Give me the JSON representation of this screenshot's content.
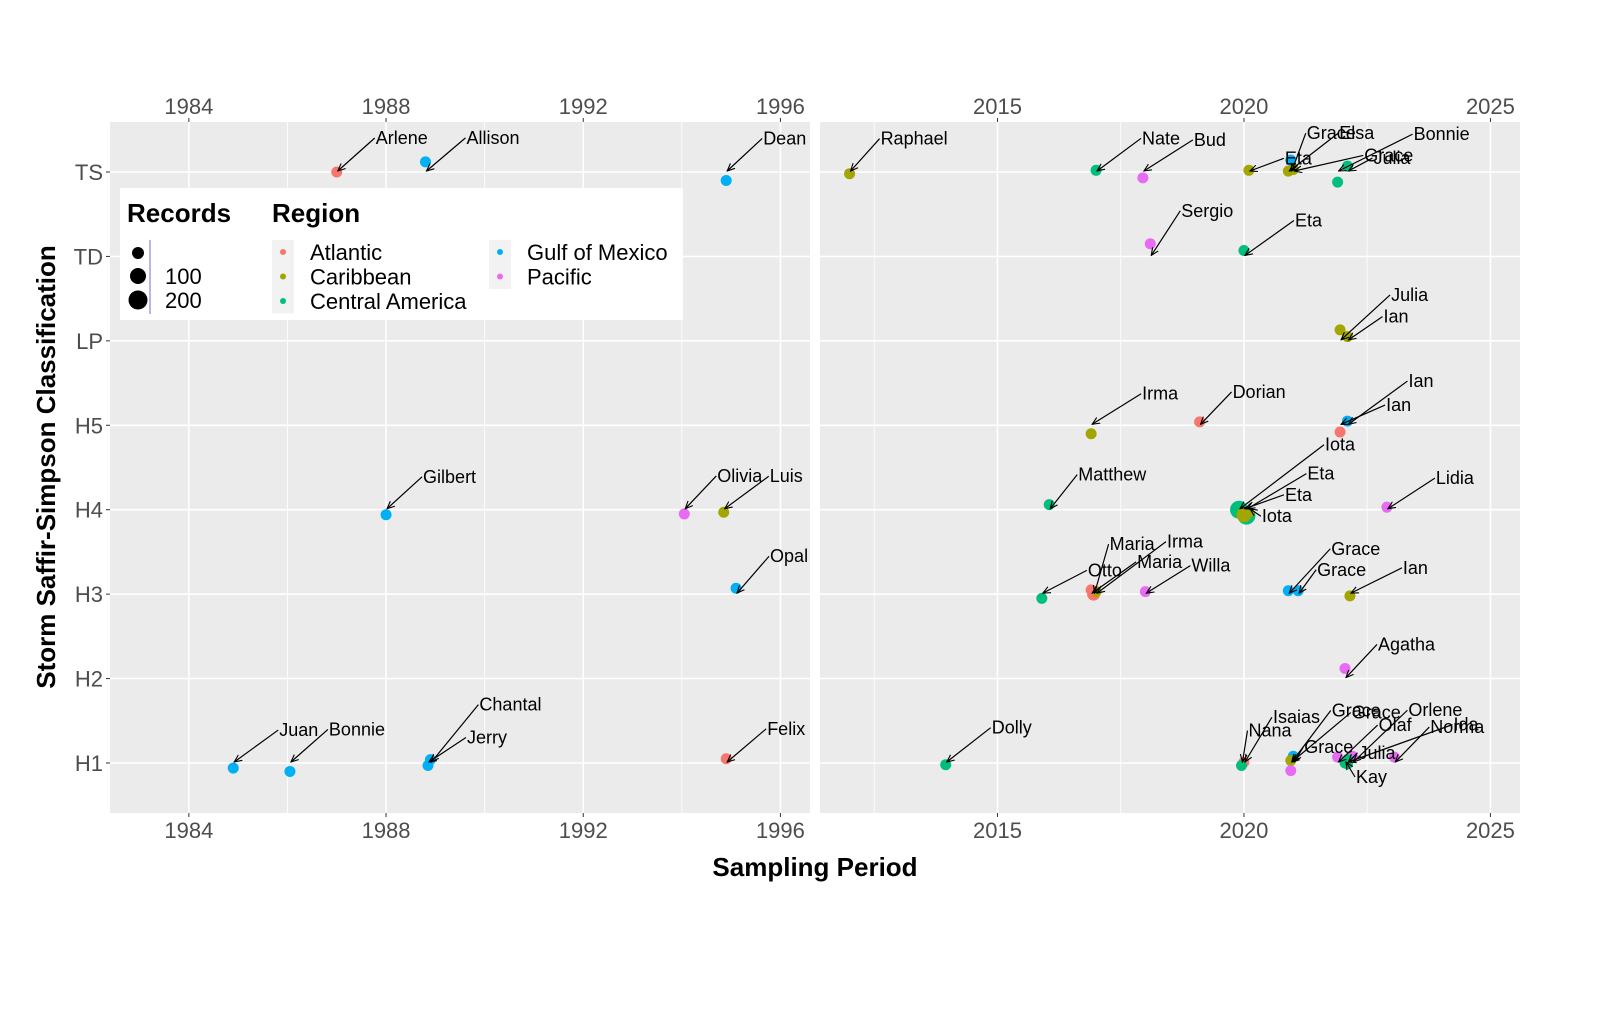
{
  "chart_data": {
    "type": "scatter",
    "title": "",
    "xlabel": "Sampling Period",
    "ylabel": "Storm Saffir-Simpson Classification",
    "y_categories": [
      "H1",
      "H2",
      "H3",
      "H4",
      "H5",
      "LP",
      "TD",
      "TS"
    ],
    "grid": true,
    "legend_placement": "top-left inside",
    "legend": {
      "size_title": "Records",
      "size_entries": [
        {
          "label": "",
          "value": 50
        },
        {
          "label": "100",
          "value": 100
        },
        {
          "label": "200",
          "value": 200
        }
      ],
      "color_title": "Region",
      "color_entries": [
        {
          "label": "Atlantic",
          "color": "#F8766D"
        },
        {
          "label": "Caribbean",
          "color": "#A3A500"
        },
        {
          "label": "Central America",
          "color": "#00BF7D"
        },
        {
          "label": "Gulf of Mexico",
          "color": "#00B0F6"
        },
        {
          "label": "Pacific",
          "color": "#E76BF3"
        }
      ]
    },
    "panels": [
      {
        "name": "1984-1996",
        "xlim": [
          1982.4,
          1996.6
        ],
        "x_ticks": [
          "1984",
          "1988",
          "1992",
          "1996"
        ],
        "points": [
          {
            "name": "Arlene",
            "x": 1987.0,
            "y": "TS",
            "jitter": 0.0,
            "region": "Atlantic",
            "records": 60
          },
          {
            "name": "Allison",
            "x": 1988.8,
            "y": "TS",
            "jitter": 0.12,
            "region": "Gulf of Mexico",
            "records": 60
          },
          {
            "name": "Dean",
            "x": 1994.9,
            "y": "TS",
            "jitter": -0.1,
            "region": "Gulf of Mexico",
            "records": 60
          },
          {
            "name": "Gilbert",
            "x": 1988.0,
            "y": "H4",
            "jitter": -0.06,
            "region": "Gulf of Mexico",
            "records": 60
          },
          {
            "name": "Olivia",
            "x": 1994.05,
            "y": "H4",
            "jitter": -0.05,
            "region": "Pacific",
            "records": 60
          },
          {
            "name": "Luis",
            "x": 1994.85,
            "y": "H4",
            "jitter": -0.03,
            "region": "Caribbean",
            "records": 60
          },
          {
            "name": "Opal",
            "x": 1995.1,
            "y": "H3",
            "jitter": 0.07,
            "region": "Gulf of Mexico",
            "records": 60
          },
          {
            "name": "Juan",
            "x": 1984.9,
            "y": "H1",
            "jitter": -0.06,
            "region": "Gulf of Mexico",
            "records": 60
          },
          {
            "name": "Bonnie",
            "x": 1986.05,
            "y": "H1",
            "jitter": -0.1,
            "region": "Gulf of Mexico",
            "records": 60
          },
          {
            "name": "Chantal",
            "x": 1988.9,
            "y": "H1",
            "jitter": 0.04,
            "region": "Gulf of Mexico",
            "records": 60
          },
          {
            "name": "Jerry",
            "x": 1988.85,
            "y": "H1",
            "jitter": -0.03,
            "region": "Gulf of Mexico",
            "records": 60
          },
          {
            "name": "Felix",
            "x": 1994.9,
            "y": "H1",
            "jitter": 0.05,
            "region": "Atlantic",
            "records": 60
          }
        ]
      },
      {
        "name": "2011-2025",
        "xlim": [
          2011.4,
          2025.6
        ],
        "x_ticks": [
          "2015",
          "2020",
          "2025"
        ],
        "points": [
          {
            "name": "Raphael",
            "x": 2012.0,
            "y": "TS",
            "jitter": -0.02,
            "region": "Caribbean",
            "records": 60
          },
          {
            "name": "Nate",
            "x": 2017.0,
            "y": "TS",
            "jitter": 0.02,
            "region": "Central America",
            "records": 60
          },
          {
            "name": "Bud",
            "x": 2017.95,
            "y": "TS",
            "jitter": -0.07,
            "region": "Pacific",
            "records": 60
          },
          {
            "name": "Eta",
            "x": 2020.1,
            "y": "TS",
            "jitter": 0.02,
            "region": "Caribbean",
            "records": 60
          },
          {
            "name": "Grace",
            "x": 2020.95,
            "y": "TS",
            "jitter": 0.14,
            "region": "Gulf of Mexico",
            "records": 60
          },
          {
            "name": "Elsa",
            "x": 2020.9,
            "y": "TS",
            "jitter": 0.01,
            "region": "Caribbean",
            "records": 60
          },
          {
            "name": "Grace",
            "x": 2021.0,
            "y": "TS",
            "jitter": 0.03,
            "region": "Caribbean",
            "records": 60
          },
          {
            "name": "Bonnie",
            "x": 2021.9,
            "y": "TS",
            "jitter": -0.12,
            "region": "Central America",
            "records": 60
          },
          {
            "name": "Julia",
            "x": 2022.1,
            "y": "TS",
            "jitter": 0.07,
            "region": "Central America",
            "records": 60
          },
          {
            "name": "Sergio",
            "x": 2018.1,
            "y": "TD",
            "jitter": 0.15,
            "region": "Pacific",
            "records": 60
          },
          {
            "name": "Eta",
            "x": 2020.0,
            "y": "TD",
            "jitter": 0.07,
            "region": "Central America",
            "records": 60
          },
          {
            "name": "Julia",
            "x": 2021.95,
            "y": "LP",
            "jitter": 0.13,
            "region": "Caribbean",
            "records": 60
          },
          {
            "name": "Ian",
            "x": 2022.1,
            "y": "LP",
            "jitter": 0.05,
            "region": "Caribbean",
            "records": 60
          },
          {
            "name": "Irma",
            "x": 2016.9,
            "y": "H5",
            "jitter": -0.1,
            "region": "Caribbean",
            "records": 60
          },
          {
            "name": "Dorian",
            "x": 2019.1,
            "y": "H5",
            "jitter": 0.04,
            "region": "Atlantic",
            "records": 60
          },
          {
            "name": "Ian",
            "x": 2022.1,
            "y": "H5",
            "jitter": 0.05,
            "region": "Gulf of Mexico",
            "records": 60
          },
          {
            "name": "Ian",
            "x": 2021.95,
            "y": "H5",
            "jitter": -0.08,
            "region": "Atlantic",
            "records": 60
          },
          {
            "name": "Matthew",
            "x": 2016.05,
            "y": "H4",
            "jitter": 0.06,
            "region": "Central America",
            "records": 60
          },
          {
            "name": "Iota",
            "x": 2019.9,
            "y": "H4",
            "jitter": 0.0,
            "region": "Central America",
            "records": 200
          },
          {
            "name": "Eta",
            "x": 2020.05,
            "y": "H4",
            "jitter": -0.07,
            "region": "Central America",
            "records": 200
          },
          {
            "name": "Eta",
            "x": 2020.0,
            "y": "H4",
            "jitter": -0.06,
            "region": "Caribbean",
            "records": 100
          },
          {
            "name": "Iota",
            "x": 2020.1,
            "y": "H4",
            "jitter": -0.03,
            "region": "Caribbean",
            "records": 60
          },
          {
            "name": "Lidia",
            "x": 2022.9,
            "y": "H4",
            "jitter": 0.03,
            "region": "Pacific",
            "records": 60
          },
          {
            "name": "Otto",
            "x": 2015.9,
            "y": "H3",
            "jitter": -0.05,
            "region": "Central America",
            "records": 60
          },
          {
            "name": "Maria",
            "x": 2016.95,
            "y": "H3",
            "jitter": 0.0,
            "region": "Atlantic",
            "records": 80
          },
          {
            "name": "Irma",
            "x": 2017.0,
            "y": "H3",
            "jitter": 0.03,
            "region": "Caribbean",
            "records": 60
          },
          {
            "name": "Maria",
            "x": 2016.9,
            "y": "H3",
            "jitter": 0.05,
            "region": "Atlantic",
            "records": 60
          },
          {
            "name": "Willa",
            "x": 2018.0,
            "y": "H3",
            "jitter": 0.03,
            "region": "Pacific",
            "records": 60
          },
          {
            "name": "Grace",
            "x": 2020.9,
            "y": "H3",
            "jitter": 0.04,
            "region": "Gulf of Mexico",
            "records": 60
          },
          {
            "name": "Grace",
            "x": 2021.1,
            "y": "H3",
            "jitter": 0.04,
            "region": "Gulf of Mexico",
            "records": 60
          },
          {
            "name": "Ian",
            "x": 2022.15,
            "y": "H3",
            "jitter": -0.02,
            "region": "Caribbean",
            "records": 60
          },
          {
            "name": "Agatha",
            "x": 2022.05,
            "y": "H2",
            "jitter": 0.12,
            "region": "Pacific",
            "records": 60
          },
          {
            "name": "Dolly",
            "x": 2013.95,
            "y": "H1",
            "jitter": -0.02,
            "region": "Central America",
            "records": 60
          },
          {
            "name": "Isaias",
            "x": 2020.0,
            "y": "H1",
            "jitter": 0.01,
            "region": "Atlantic",
            "records": 60
          },
          {
            "name": "Nana",
            "x": 2019.95,
            "y": "H1",
            "jitter": -0.03,
            "region": "Central America",
            "records": 60
          },
          {
            "name": "Grace",
            "x": 2021.0,
            "y": "H1",
            "jitter": 0.08,
            "region": "Gulf of Mexico",
            "records": 60
          },
          {
            "name": "Olaf",
            "x": 2021.9,
            "y": "H1",
            "jitter": 0.07,
            "region": "Pacific",
            "records": 60
          },
          {
            "name": "Grace",
            "x": 2020.95,
            "y": "H1",
            "jitter": 0.03,
            "region": "Caribbean",
            "records": 60
          },
          {
            "name": "Grace",
            "x": 2020.95,
            "y": "H1",
            "jitter": -0.09,
            "region": "Pacific",
            "records": 60
          },
          {
            "name": "Orlene",
            "x": 2022.2,
            "y": "H1",
            "jitter": 0.08,
            "region": "Pacific",
            "records": 60
          },
          {
            "name": "Ida",
            "x": 2022.1,
            "y": "H1",
            "jitter": 0.04,
            "region": "Central America",
            "records": 60
          },
          {
            "name": "Kay",
            "x": 2022.05,
            "y": "H1",
            "jitter": 0.0,
            "region": "Central America",
            "records": 60
          },
          {
            "name": "Julia",
            "x": 2022.1,
            "y": "H1",
            "jitter": -0.01,
            "region": "Central America",
            "records": 60
          },
          {
            "name": "Norma",
            "x": 2023.05,
            "y": "H1",
            "jitter": 0.07,
            "region": "Pacific",
            "records": 60
          }
        ]
      }
    ]
  }
}
